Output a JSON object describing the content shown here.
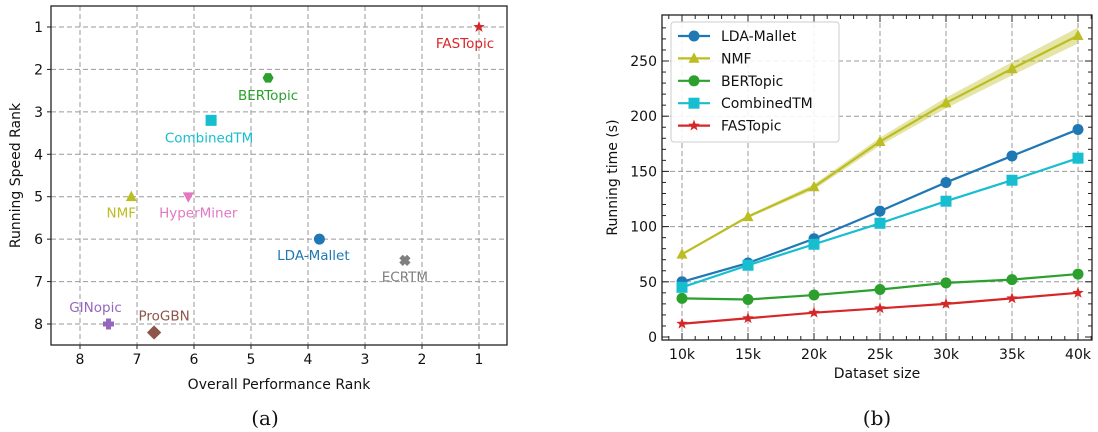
{
  "chart_data": [
    {
      "type": "scatter",
      "caption": "(a)",
      "title": "",
      "xlabel": "Overall Performance Rank",
      "ylabel": "Running Speed Rank",
      "xlim": [
        8.5,
        0.5
      ],
      "ylim": [
        8.5,
        0.5
      ],
      "x_inverted": true,
      "y_inverted": true,
      "xticks": [
        8,
        7,
        6,
        5,
        4,
        3,
        2,
        1
      ],
      "yticks": [
        1,
        2,
        3,
        4,
        5,
        6,
        7,
        8
      ],
      "grid": true,
      "points": [
        {
          "name": "FASTopic",
          "x": 1.0,
          "y": 1.0,
          "marker": "star",
          "color": "#d62728"
        },
        {
          "name": "BERTopic",
          "x": 4.7,
          "y": 2.2,
          "marker": "hexagon",
          "color": "#2ca02c"
        },
        {
          "name": "CombinedTM",
          "x": 5.7,
          "y": 3.2,
          "marker": "square",
          "color": "#17becf"
        },
        {
          "name": "NMF",
          "x": 7.1,
          "y": 5.0,
          "marker": "triangle-up",
          "color": "#bcbd22"
        },
        {
          "name": "HyperMiner",
          "x": 6.1,
          "y": 5.0,
          "marker": "triangle-down",
          "color": "#e377c2"
        },
        {
          "name": "LDA-Mallet",
          "x": 3.8,
          "y": 6.0,
          "marker": "circle",
          "color": "#1f77b4"
        },
        {
          "name": "ECRTM",
          "x": 2.3,
          "y": 6.5,
          "marker": "x",
          "color": "#7f7f7f"
        },
        {
          "name": "GINopic",
          "x": 7.5,
          "y": 8.0,
          "marker": "plus",
          "color": "#9467bd"
        },
        {
          "name": "ProGBN",
          "x": 6.7,
          "y": 8.2,
          "marker": "diamond",
          "color": "#8c564b"
        }
      ]
    },
    {
      "type": "line",
      "caption": "(b)",
      "title": "",
      "xlabel": "Dataset size",
      "ylabel": "Running time (s)",
      "categories": [
        "10k",
        "15k",
        "20k",
        "25k",
        "30k",
        "35k",
        "40k"
      ],
      "yticks": [
        0,
        50,
        100,
        150,
        200,
        250
      ],
      "ylim": [
        0,
        288
      ],
      "grid": true,
      "legend_position": "upper left",
      "series": [
        {
          "name": "LDA-Mallet",
          "color": "#1f77b4",
          "marker": "circle",
          "values": [
            50,
            67,
            89,
            114,
            140,
            164,
            188
          ]
        },
        {
          "name": "NMF",
          "color": "#bcbd22",
          "marker": "triangle",
          "values": [
            75,
            109,
            136,
            177,
            212,
            243,
            273
          ]
        },
        {
          "name": "BERTopic",
          "color": "#2ca02c",
          "marker": "circle",
          "values": [
            35,
            34,
            38,
            43,
            49,
            52,
            57
          ]
        },
        {
          "name": "CombinedTM",
          "color": "#17becf",
          "marker": "square",
          "values": [
            45,
            65,
            84,
            103,
            123,
            142,
            162
          ]
        },
        {
          "name": "FASTopic",
          "color": "#d62728",
          "marker": "star",
          "values": [
            12,
            17,
            22,
            26,
            30,
            35,
            40
          ]
        }
      ]
    }
  ]
}
